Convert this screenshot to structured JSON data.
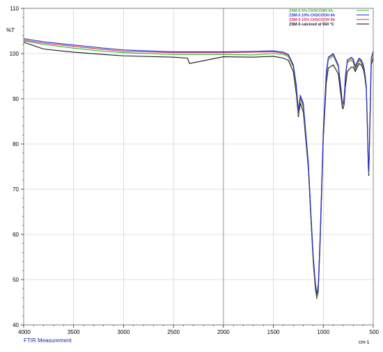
{
  "chart_data": {
    "type": "line",
    "ylabel": "%T",
    "xunit": "cm-1",
    "footer": "FTIR Measurement",
    "xlim": [
      4000,
      500
    ],
    "ylim": [
      40,
      110
    ],
    "xticks": [
      4000,
      3500,
      3000,
      2500,
      2000,
      1500,
      1000,
      500
    ],
    "yticks": [
      40,
      50,
      60,
      70,
      80,
      90,
      100,
      110
    ],
    "grid": true,
    "legend_position": "top-right",
    "series": [
      {
        "name": "ZSM-5 5% CH3COOH 6h",
        "color": "#2db82d",
        "x": [
          4000,
          3800,
          3500,
          3200,
          3000,
          2500,
          2000,
          1700,
          1500,
          1400,
          1350,
          1300,
          1270,
          1250,
          1230,
          1200,
          1150,
          1120,
          1100,
          1080,
          1065,
          1050,
          1030,
          1000,
          970,
          950,
          900,
          850,
          820,
          810,
          800,
          790,
          780,
          760,
          720,
          700,
          680,
          660,
          640,
          620,
          600,
          590,
          580,
          570,
          560,
          550,
          545,
          540,
          520,
          500
        ],
        "y": [
          102.8,
          102.0,
          101.2,
          100.5,
          100.2,
          99.8,
          99.8,
          99.7,
          100.0,
          99.8,
          99.3,
          97.0,
          92.0,
          86.5,
          90.0,
          88.0,
          75.0,
          62.0,
          54.0,
          48.5,
          46.0,
          48.0,
          60.0,
          82.0,
          95.0,
          98.5,
          99.5,
          97.0,
          91.0,
          88.5,
          88.0,
          90.0,
          94.0,
          98.0,
          98.5,
          98.0,
          96.5,
          97.5,
          98.5,
          98.0,
          97.0,
          96.0,
          94.5,
          92.5,
          85.0,
          75.5,
          73.5,
          78.0,
          98.5,
          100.0
        ]
      },
      {
        "name": "ZSM-5 10% CH3COOH 6h",
        "color": "#1f2fd0",
        "x": [
          4000,
          3800,
          3500,
          3200,
          3000,
          2500,
          2000,
          1700,
          1500,
          1400,
          1350,
          1300,
          1270,
          1250,
          1230,
          1200,
          1150,
          1120,
          1100,
          1080,
          1065,
          1050,
          1030,
          1000,
          970,
          950,
          900,
          850,
          820,
          810,
          800,
          790,
          780,
          760,
          720,
          700,
          680,
          660,
          640,
          620,
          600,
          590,
          580,
          570,
          560,
          550,
          545,
          540,
          520,
          500
        ],
        "y": [
          103.3,
          102.6,
          101.9,
          101.2,
          100.8,
          100.4,
          100.4,
          100.5,
          100.6,
          100.3,
          99.8,
          97.5,
          93.0,
          87.5,
          90.8,
          89.0,
          76.0,
          63.0,
          55.0,
          49.5,
          46.8,
          49.0,
          61.0,
          83.0,
          96.0,
          99.2,
          100.0,
          97.5,
          91.8,
          89.2,
          89.0,
          90.8,
          94.8,
          98.6,
          99.2,
          98.8,
          97.2,
          98.2,
          99.0,
          98.6,
          97.6,
          96.6,
          95.0,
          93.0,
          85.8,
          76.2,
          74.0,
          78.6,
          99.0,
          100.5
        ]
      },
      {
        "name": "ZSM-5 15% CH3COOH 6h",
        "color": "#d02a5a",
        "x": [
          4000,
          3800,
          3500,
          3200,
          3000,
          2500,
          2000,
          1700,
          1500,
          1400,
          1350,
          1300,
          1270,
          1250,
          1230,
          1200,
          1150,
          1120,
          1100,
          1080,
          1065,
          1050,
          1030,
          1000,
          970,
          950,
          900,
          850,
          820,
          810,
          800,
          790,
          780,
          760,
          720,
          700,
          680,
          660,
          640,
          620,
          600,
          590,
          580,
          570,
          560,
          550,
          545,
          540,
          520,
          500
        ],
        "y": [
          103.0,
          102.3,
          101.6,
          100.9,
          100.5,
          100.2,
          100.2,
          100.3,
          100.4,
          100.1,
          99.6,
          97.3,
          92.6,
          87.0,
          90.4,
          88.6,
          75.6,
          62.6,
          54.6,
          49.0,
          46.4,
          48.6,
          60.6,
          82.6,
          95.6,
          99.0,
          99.8,
          97.3,
          91.4,
          88.8,
          88.6,
          90.4,
          94.4,
          98.3,
          98.9,
          98.4,
          96.9,
          97.9,
          98.8,
          98.3,
          97.3,
          96.3,
          94.8,
          92.8,
          85.4,
          75.8,
          73.8,
          78.3,
          98.8,
          100.3
        ]
      },
      {
        "name": "ZSM-5 calcined at 550 °C",
        "color": "#111111",
        "x": [
          4000,
          3800,
          3500,
          3200,
          3000,
          2500,
          2360,
          2340,
          2000,
          1700,
          1500,
          1400,
          1350,
          1300,
          1270,
          1250,
          1230,
          1200,
          1150,
          1120,
          1100,
          1080,
          1065,
          1050,
          1030,
          1000,
          970,
          950,
          900,
          850,
          820,
          810,
          800,
          790,
          780,
          760,
          720,
          700,
          680,
          660,
          640,
          620,
          600,
          590,
          580,
          570,
          560,
          550,
          545,
          540,
          520,
          500
        ],
        "y": [
          102.5,
          101.0,
          100.3,
          99.8,
          99.5,
          99.2,
          99.0,
          97.8,
          99.3,
          99.2,
          99.4,
          99.0,
          98.5,
          96.0,
          91.0,
          86.0,
          89.0,
          87.0,
          74.5,
          61.5,
          53.5,
          48.0,
          45.8,
          47.5,
          59.0,
          81.0,
          93.5,
          96.8,
          97.5,
          95.5,
          90.0,
          88.0,
          87.8,
          89.0,
          92.5,
          96.0,
          97.0,
          97.0,
          96.0,
          97.0,
          97.8,
          97.5,
          96.5,
          95.5,
          94.0,
          92.0,
          84.5,
          75.0,
          73.0,
          77.0,
          97.5,
          99.0
        ]
      }
    ]
  }
}
